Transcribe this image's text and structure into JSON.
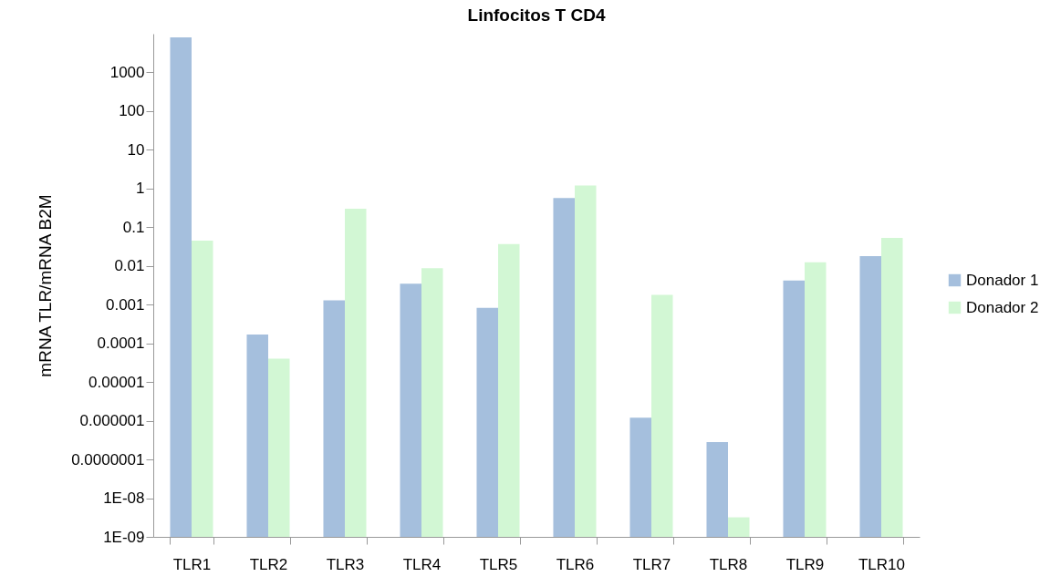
{
  "chart_data": {
    "type": "bar",
    "title": "Linfocitos T CD4",
    "ylabel": "mRNA TLR/mRNA B2M",
    "categories": [
      "TLR1",
      "TLR2",
      "TLR3",
      "TLR4",
      "TLR5",
      "TLR6",
      "TLR7",
      "TLR8",
      "TLR9",
      "TLR10"
    ],
    "series": [
      {
        "name": "Donador 1",
        "color": "#a5bfdd",
        "values": [
          8000,
          0.00017,
          0.0013,
          0.0035,
          0.00083,
          0.57,
          1.2e-06,
          2.8e-07,
          0.0042,
          0.018
        ]
      },
      {
        "name": "Donador 2",
        "color": "#d2f7d4",
        "values": [
          0.045,
          4e-05,
          0.3,
          0.0088,
          0.037,
          1.2,
          0.0018,
          3.2e-09,
          0.0125,
          0.053
        ]
      }
    ],
    "log": true,
    "ylim": [
      1e-09,
      10000
    ],
    "yticks": [
      1000,
      100,
      10,
      1,
      0.1,
      0.01,
      0.001,
      0.0001,
      {
        "value": 1e-05,
        "label": "0.00001"
      },
      {
        "value": 1e-06,
        "label": "0.000001"
      },
      {
        "value": 1e-07,
        "label": "0.0000001"
      },
      {
        "value": 1e-08,
        "label": "1E-08"
      },
      {
        "value": 1e-09,
        "label": "1E-09"
      }
    ],
    "grid": false,
    "legend": "right"
  }
}
